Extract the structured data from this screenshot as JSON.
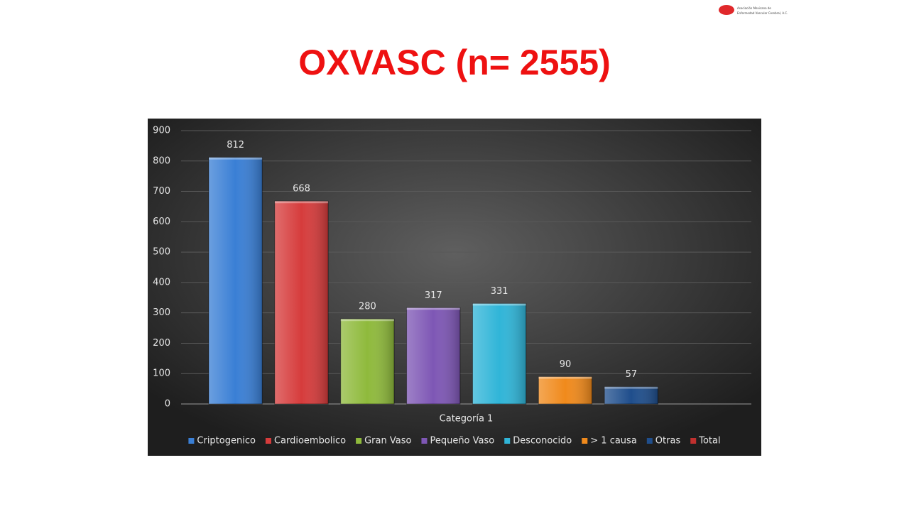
{
  "logo": {
    "lines": [
      "Asociación Mexicana de",
      "Enfermedad Vascular Cerebral, A.C."
    ]
  },
  "chart_data": {
    "type": "bar",
    "title": "OXVASC (n= 2555)",
    "categories": [
      "Categoría 1"
    ],
    "series": [
      {
        "name": "Criptogenico",
        "color": "#3a7fd5",
        "values": [
          812
        ]
      },
      {
        "name": "Cardioembolico",
        "color": "#d63c3c",
        "values": [
          668
        ]
      },
      {
        "name": "Gran Vaso",
        "color": "#8fba3c",
        "values": [
          280
        ]
      },
      {
        "name": "Pequeño Vaso",
        "color": "#7e57b5",
        "values": [
          317
        ]
      },
      {
        "name": "Desconocido",
        "color": "#30b5d8",
        "values": [
          331
        ]
      },
      {
        "name": "> 1 causa",
        "color": "#f08a1c",
        "values": [
          90
        ]
      },
      {
        "name": "Otras",
        "color": "#1f4e8c",
        "values": [
          57
        ]
      },
      {
        "name": "Total",
        "color": "#c0302e",
        "values": [
          null
        ]
      }
    ],
    "ylim": [
      0,
      900
    ],
    "yticks": [
      0,
      100,
      200,
      300,
      400,
      500,
      600,
      700,
      800,
      900
    ],
    "grid": true,
    "legend": "bottom"
  }
}
